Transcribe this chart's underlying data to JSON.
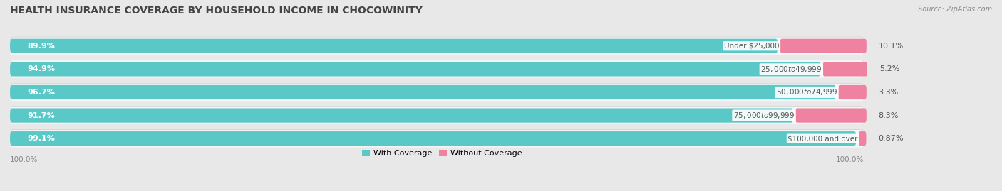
{
  "title": "HEALTH INSURANCE COVERAGE BY HOUSEHOLD INCOME IN CHOCOWINITY",
  "source": "Source: ZipAtlas.com",
  "categories": [
    "Under $25,000",
    "$25,000 to $49,999",
    "$50,000 to $74,999",
    "$75,000 to $99,999",
    "$100,000 and over"
  ],
  "with_coverage": [
    89.9,
    94.9,
    96.7,
    91.7,
    99.1
  ],
  "without_coverage": [
    10.1,
    5.2,
    3.3,
    8.3,
    0.87
  ],
  "with_color": "#5BC8C8",
  "without_color": "#EE82A0",
  "bg_color": "#e8e8e8",
  "bar_bg_color": "#f5f5f5",
  "shadow_color": "#cccccc",
  "title_fontsize": 10,
  "label_fontsize": 8,
  "tick_fontsize": 7.5,
  "legend_fontsize": 8,
  "bar_height": 0.62,
  "total_width": 100
}
